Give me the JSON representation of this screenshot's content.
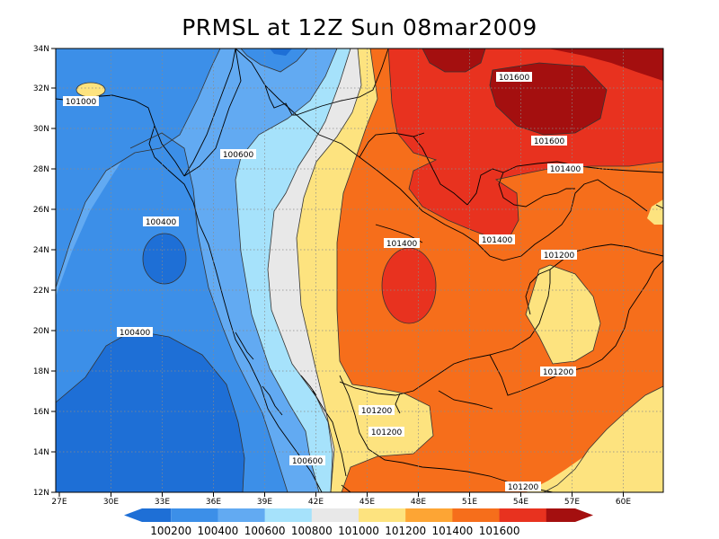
{
  "title": "PRMSL at 12Z Sun 08mar2009",
  "lon_ticks": [
    "27E",
    "30E",
    "33E",
    "36E",
    "39E",
    "42E",
    "45E",
    "48E",
    "51E",
    "54E",
    "57E",
    "60E"
  ],
  "lat_ticks": [
    "12N",
    "14N",
    "16N",
    "18N",
    "20N",
    "22N",
    "24N",
    "26N",
    "28N",
    "30N",
    "32N",
    "34N"
  ],
  "contour_labels": {
    "l1": "101000",
    "l2": "101600",
    "l3": "101600",
    "l4": "100600",
    "l5": "101400",
    "l6": "100400",
    "l7": "101400",
    "l8": "101400",
    "l9": "101200",
    "l10": "100400",
    "l11": "101200",
    "l12": "101200",
    "l13": "101200",
    "l14": "100600",
    "l15": "101200"
  },
  "colorbar": {
    "colors": [
      "#1e6fd6",
      "#3c8fe8",
      "#62aaf2",
      "#a6e2fb",
      "#e8e8e8",
      "#fde37f",
      "#fda534",
      "#f66e1b",
      "#e8321f",
      "#a40f0f"
    ],
    "labels": [
      "100200",
      "100400",
      "100600",
      "100800",
      "101000",
      "101200",
      "101400",
      "101600"
    ]
  },
  "palette": {
    "c_100200": "#1e6fd6",
    "c_100400": "#3c8fe8",
    "c_100600": "#62aaf2",
    "c_100800": "#a6e2fb",
    "c_101000": "#e8e8e8",
    "c_101200": "#fde37f",
    "c_101400": "#f66e1b",
    "c_101600": "#e8321f",
    "c_high": "#a40f0f"
  }
}
